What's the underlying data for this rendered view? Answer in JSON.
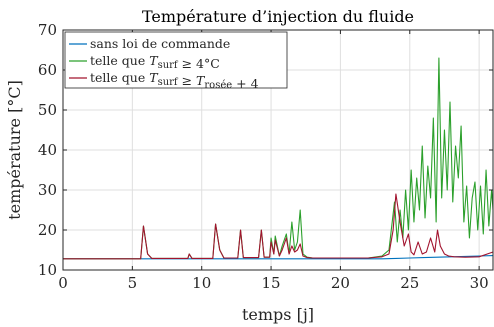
{
  "chart_data": {
    "type": "line",
    "title": "Température d’injection du fluide",
    "xlabel": "temps [j]",
    "ylabel": "température [°C]",
    "xlim": [
      0,
      31
    ],
    "ylim": [
      10,
      70
    ],
    "xticks": [
      0,
      5,
      10,
      15,
      20,
      25,
      30
    ],
    "yticks": [
      10,
      20,
      30,
      40,
      50,
      60,
      70
    ],
    "grid": true,
    "legend_position": "top-left",
    "series": [
      {
        "name": "sans loi de commande",
        "legend_parts": [
          {
            "t": "sans loi de commande"
          }
        ],
        "color": "#0072bd",
        "x": [
          0,
          5,
          10,
          15,
          20,
          23,
          24,
          25,
          26,
          27,
          28,
          29,
          30,
          31
        ],
        "y": [
          12.8,
          12.8,
          12.8,
          12.8,
          12.8,
          12.8,
          12.9,
          13.0,
          13.1,
          13.2,
          13.3,
          13.4,
          13.5,
          13.6
        ]
      },
      {
        "name": "telle que T_surf ≥ 4°C",
        "legend_parts": [
          {
            "t": "telle que "
          },
          {
            "t": "T",
            "i": true
          },
          {
            "t": "surf",
            "sub": true
          },
          {
            "t": " ≥ 4°C"
          }
        ],
        "color": "#2ca02c",
        "x": [
          0,
          5.6,
          5.8,
          6.1,
          6.4,
          9.0,
          9.1,
          9.3,
          10.8,
          11.0,
          11.3,
          11.6,
          12.6,
          12.8,
          13.0,
          14.1,
          14.3,
          14.5,
          14.9,
          15.0,
          15.2,
          15.3,
          15.6,
          15.8,
          16.1,
          16.3,
          16.5,
          16.7,
          16.9,
          17.1,
          17.3,
          17.6,
          18.0,
          20.0,
          22.0,
          23.0,
          23.5,
          23.9,
          24.1,
          24.3,
          24.5,
          24.7,
          24.9,
          25.1,
          25.3,
          25.5,
          25.7,
          25.9,
          26.1,
          26.3,
          26.5,
          26.7,
          26.9,
          27.1,
          27.3,
          27.5,
          27.7,
          27.9,
          28.1,
          28.3,
          28.5,
          28.7,
          28.9,
          29.1,
          29.3,
          29.5,
          29.7,
          29.9,
          30.1,
          30.3,
          30.5,
          30.7,
          30.9,
          31.0
        ],
        "y": [
          12.8,
          12.8,
          21.0,
          14.0,
          12.9,
          12.9,
          14.0,
          12.9,
          12.9,
          21.5,
          15.0,
          13.0,
          13.0,
          20.0,
          13.1,
          13.1,
          20.0,
          13.2,
          13.2,
          18.0,
          14.0,
          18.5,
          13.5,
          16.0,
          19.0,
          14.0,
          22.0,
          15.0,
          17.0,
          25.0,
          14.0,
          13.2,
          13.0,
          13.0,
          13.0,
          13.5,
          15.0,
          27.0,
          17.0,
          25.0,
          18.0,
          30.0,
          20.0,
          35.0,
          22.0,
          33.0,
          25.0,
          41.0,
          23.0,
          36.0,
          28.0,
          48.0,
          22.0,
          63.0,
          28.0,
          45.0,
          30.0,
          52.0,
          27.0,
          41.0,
          33.0,
          46.0,
          22.0,
          31.0,
          18.0,
          28.0,
          32.0,
          20.0,
          31.0,
          19.0,
          35.0,
          21.0,
          30.0,
          25.0
        ]
      },
      {
        "name": "telle que T_surf ≥ T_rosée + 4",
        "legend_parts": [
          {
            "t": "telle que "
          },
          {
            "t": "T",
            "i": true
          },
          {
            "t": "surf",
            "sub": true
          },
          {
            "t": " ≥ "
          },
          {
            "t": "T",
            "i": true
          },
          {
            "t": "rosée",
            "sub": true
          },
          {
            "t": " + 4"
          }
        ],
        "color": "#a2142f",
        "x": [
          0,
          5.6,
          5.8,
          6.1,
          6.4,
          9.0,
          9.1,
          9.3,
          10.8,
          11.0,
          11.3,
          11.6,
          12.6,
          12.8,
          13.0,
          14.1,
          14.3,
          14.5,
          14.9,
          15.0,
          15.2,
          15.3,
          15.6,
          15.8,
          16.1,
          16.3,
          16.5,
          16.7,
          16.9,
          17.1,
          17.3,
          17.6,
          18.0,
          20.0,
          22.0,
          23.0,
          23.5,
          23.8,
          24.0,
          24.3,
          24.6,
          24.9,
          25.1,
          25.3,
          25.6,
          25.9,
          26.2,
          26.5,
          26.8,
          27.0,
          27.2,
          27.5,
          27.8,
          28.2,
          29.0,
          30.0,
          31.0
        ],
        "y": [
          12.8,
          12.8,
          21.0,
          14.0,
          12.9,
          12.9,
          14.0,
          12.9,
          12.9,
          21.5,
          15.0,
          13.0,
          13.0,
          20.0,
          13.1,
          13.1,
          20.0,
          13.2,
          13.2,
          17.0,
          14.0,
          17.5,
          13.5,
          15.0,
          18.0,
          14.0,
          16.0,
          14.5,
          15.0,
          16.5,
          13.5,
          13.1,
          13.0,
          13.0,
          13.0,
          13.3,
          14.0,
          20.0,
          29.0,
          22.0,
          16.0,
          19.0,
          14.5,
          13.8,
          17.0,
          14.0,
          14.5,
          18.0,
          14.5,
          20.0,
          16.0,
          14.0,
          13.5,
          13.3,
          13.2,
          13.3,
          14.5
        ]
      }
    ]
  }
}
